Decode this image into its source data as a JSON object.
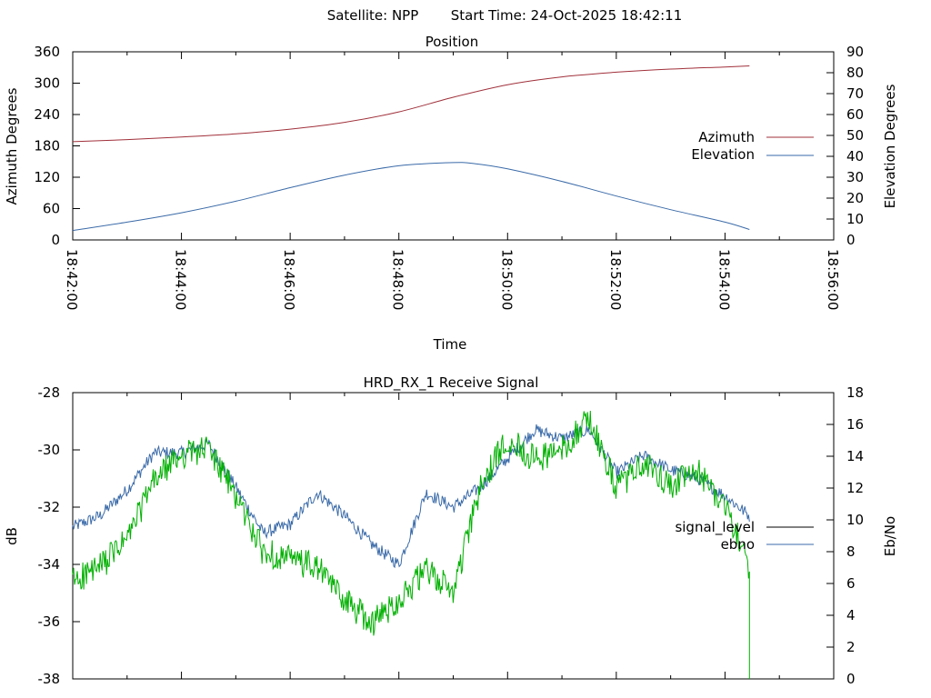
{
  "header": {
    "satellite_label": "Satellite: NPP",
    "start_time_label": "Start Time: 24-Oct-2025 18:42:11"
  },
  "chart_data": [
    {
      "type": "line",
      "title": "Position",
      "xlabel": "Time",
      "ylabel": "Azimuth Degrees",
      "y2label": "Elevation Degrees",
      "x_ticks": [
        "18:42:00",
        "18:44:00",
        "18:46:00",
        "18:48:00",
        "18:50:00",
        "18:52:00",
        "18:54:00",
        "18:56:00"
      ],
      "xlim_minutes": [
        0,
        14
      ],
      "ylim": [
        0,
        360
      ],
      "y_ticks": [
        "0",
        "60",
        "120",
        "180",
        "240",
        "300",
        "360"
      ],
      "y2lim": [
        0,
        90
      ],
      "y2_ticks": [
        "0",
        "10",
        "20",
        "30",
        "40",
        "50",
        "60",
        "70",
        "80",
        "90"
      ],
      "legend": "right",
      "series": [
        {
          "name": "Azimuth",
          "axis": "left",
          "color": "#a0303a",
          "x_minutes": [
            0.0,
            1,
            2,
            3,
            4,
            5,
            6,
            7,
            8,
            9,
            10,
            11,
            12,
            12.45
          ],
          "values": [
            188,
            192,
            197,
            203,
            212,
            225,
            245,
            273,
            297,
            312,
            321,
            327,
            331,
            333
          ]
        },
        {
          "name": "Elevation",
          "axis": "right",
          "color": "#3a6aa8",
          "x_minutes": [
            0.0,
            1,
            2,
            3,
            4,
            5,
            6,
            7,
            7.4,
            8,
            9,
            10,
            11,
            12,
            12.45
          ],
          "values": [
            4.5,
            8.5,
            13,
            18.5,
            25,
            31,
            35.5,
            37,
            36.5,
            34,
            28,
            21,
            14.5,
            8.5,
            5
          ]
        }
      ]
    },
    {
      "type": "line",
      "title": "HRD_RX_1 Receive Signal",
      "xlabel": "",
      "ylabel": "dB",
      "y2label": "Eb/No",
      "xlim_minutes": [
        0,
        14
      ],
      "ylim": [
        -38,
        -28
      ],
      "y_ticks": [
        "-28",
        "-30",
        "-32",
        "-34",
        "-36",
        "-38"
      ],
      "y2lim": [
        0,
        18
      ],
      "y2_ticks": [
        "0",
        "2",
        "4",
        "6",
        "8",
        "10",
        "12",
        "14",
        "16",
        "18"
      ],
      "legend": "right",
      "series": [
        {
          "name": "signal_level",
          "axis": "left",
          "color": "#3a6aa8",
          "x_minutes": [
            0.0,
            0.5,
            1.0,
            1.5,
            2.0,
            2.5,
            3.0,
            3.5,
            4.0,
            4.5,
            5.0,
            5.5,
            6.0,
            6.5,
            7.0,
            7.5,
            8.0,
            8.5,
            9.0,
            9.5,
            10.0,
            10.5,
            11.0,
            11.5,
            12.0,
            12.45
          ],
          "values": [
            -32.7,
            -32.3,
            -31.4,
            -30.1,
            -30.1,
            -29.8,
            -31.3,
            -32.9,
            -32.6,
            -31.5,
            -32.3,
            -33.3,
            -34.0,
            -31.5,
            -32.0,
            -31.3,
            -30.3,
            -29.3,
            -29.6,
            -29.3,
            -30.8,
            -30.2,
            -30.7,
            -31.0,
            -31.6,
            -32.3
          ]
        },
        {
          "name": "ebno",
          "axis": "right",
          "color": "#00b000",
          "x_minutes": [
            0.0,
            0.5,
            1.0,
            1.5,
            2.0,
            2.5,
            3.0,
            3.5,
            4.0,
            4.5,
            5.0,
            5.5,
            6.0,
            6.5,
            7.0,
            7.5,
            8.0,
            8.5,
            9.0,
            9.5,
            10.0,
            10.5,
            11.0,
            11.5,
            12.0,
            12.45
          ],
          "values": [
            6.2,
            7.0,
            8.8,
            12.5,
            14.1,
            14.5,
            11.5,
            8.0,
            7.5,
            7.0,
            5.0,
            3.5,
            5.0,
            6.8,
            5.5,
            12.0,
            15.2,
            13.8,
            14.4,
            16.4,
            12.0,
            13.5,
            12.2,
            13.0,
            11.0,
            7.0
          ]
        }
      ]
    }
  ]
}
